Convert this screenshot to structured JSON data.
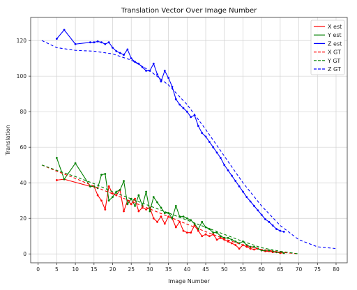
{
  "chart_data": {
    "type": "line",
    "title": "Translation Vector Over Image Number",
    "xlabel": "Image Number",
    "ylabel": "Translation",
    "xlim": [
      -2,
      83
    ],
    "ylim": [
      -5,
      133
    ],
    "xticks": [
      0,
      5,
      10,
      15,
      20,
      25,
      30,
      35,
      40,
      45,
      50,
      55,
      60,
      65,
      70,
      75,
      80
    ],
    "yticks": [
      0,
      20,
      40,
      60,
      80,
      100,
      120
    ],
    "grid": true,
    "legend_position": "top-right",
    "series": [
      {
        "name": "X est",
        "color": "#ff0000",
        "style": "solid",
        "markers": true,
        "x": [
          5,
          7,
          14,
          15,
          16,
          17,
          18,
          19,
          20,
          21,
          22,
          23,
          24,
          25,
          26,
          27,
          28,
          29,
          30,
          31,
          32,
          33,
          34,
          35,
          36,
          37,
          38,
          39,
          40,
          41,
          42,
          43,
          44,
          45,
          46,
          47,
          48,
          49,
          50,
          51,
          52,
          53,
          54,
          55,
          56,
          57,
          58,
          59,
          60,
          61,
          62,
          63,
          64,
          65,
          66
        ],
        "y": [
          41.5,
          42,
          38,
          38,
          33,
          30,
          25,
          38,
          34,
          33,
          36,
          24,
          30,
          28,
          31,
          24,
          26,
          25,
          26,
          20,
          18,
          21,
          17,
          21,
          20,
          15,
          18,
          13,
          12,
          12,
          16,
          13,
          10,
          11,
          10,
          11,
          8,
          9,
          8,
          7,
          6,
          5,
          3,
          5,
          4,
          3,
          2.5,
          3,
          2,
          1.5,
          1.5,
          1,
          1,
          0.5,
          0.5
        ]
      },
      {
        "name": "Y est",
        "color": "#008000",
        "style": "solid",
        "markers": true,
        "x": [
          5,
          7,
          10,
          14,
          15,
          16,
          17,
          18,
          19,
          20,
          21,
          22,
          23,
          24,
          25,
          26,
          27,
          28,
          29,
          30,
          31,
          32,
          33,
          34,
          35,
          36,
          37,
          38,
          39,
          40,
          41,
          42,
          43,
          44,
          45,
          46,
          47,
          48,
          49,
          50,
          51,
          52,
          53,
          54,
          55,
          56,
          57,
          58,
          59,
          60,
          61,
          62,
          63,
          64,
          65,
          66
        ],
        "y": [
          54,
          42,
          51,
          38,
          38,
          37,
          44.5,
          45,
          30,
          32,
          35,
          36,
          41,
          28,
          31,
          27,
          33,
          27,
          35,
          24,
          32,
          29,
          26,
          23,
          23,
          20,
          27,
          21,
          21,
          20,
          19,
          17,
          14,
          18,
          15,
          14,
          12,
          12,
          10,
          9,
          9,
          8,
          7,
          6,
          7,
          5,
          4,
          4,
          3,
          2,
          2,
          2,
          1.5,
          1,
          1,
          0.5
        ]
      },
      {
        "name": "Z est",
        "color": "#0000ff",
        "style": "solid",
        "markers": true,
        "x": [
          5,
          7,
          10,
          14,
          15,
          16,
          17,
          18,
          19,
          20,
          21,
          22,
          23,
          24,
          25,
          26,
          27,
          28,
          29,
          30,
          31,
          32,
          33,
          34,
          35,
          36,
          37,
          38,
          39,
          40,
          41,
          42,
          43,
          44,
          45,
          46,
          47,
          48,
          49,
          50,
          51,
          52,
          53,
          54,
          55,
          56,
          57,
          58,
          59,
          60,
          61,
          62,
          63,
          64,
          65,
          66
        ],
        "y": [
          121,
          126,
          118,
          119,
          119,
          119.5,
          119,
          118,
          119,
          116,
          114,
          113,
          112,
          115,
          110,
          108,
          107,
          105,
          103,
          103,
          107,
          101,
          97,
          103,
          99,
          94,
          87,
          84,
          82,
          80,
          77,
          78,
          72,
          68,
          66,
          63,
          60,
          57,
          54,
          50,
          47,
          44,
          41,
          38,
          35,
          32,
          29.5,
          27,
          24.5,
          22,
          19.5,
          18,
          16,
          14,
          13,
          12.5
        ]
      },
      {
        "name": "X GT",
        "color": "#ff0000",
        "style": "dashed",
        "markers": false,
        "x": [
          1,
          5,
          10,
          15,
          20,
          25,
          30,
          35,
          40,
          45,
          50,
          55,
          60,
          65,
          70
        ],
        "y": [
          50,
          46.5,
          42.5,
          38,
          33.8,
          29.5,
          25.3,
          21,
          16.7,
          12.5,
          8.5,
          5,
          2.5,
          1,
          0
        ]
      },
      {
        "name": "Y GT",
        "color": "#008000",
        "style": "dashed",
        "markers": false,
        "x": [
          1,
          5,
          10,
          15,
          20,
          25,
          30,
          35,
          40,
          45,
          50,
          55,
          60,
          65,
          70
        ],
        "y": [
          50,
          47,
          43.5,
          39.5,
          35,
          31,
          27,
          23,
          19,
          15,
          11,
          7,
          3.5,
          1.5,
          0
        ]
      },
      {
        "name": "Z GT",
        "color": "#0000ff",
        "style": "dashed",
        "markers": false,
        "x": [
          1,
          5,
          10,
          15,
          20,
          25,
          30,
          35,
          40,
          45,
          50,
          55,
          60,
          65,
          70,
          75,
          80
        ],
        "y": [
          120,
          116,
          114.5,
          114,
          112.5,
          109,
          103,
          95,
          84,
          70,
          55,
          40,
          27,
          16,
          8,
          4,
          3
        ]
      }
    ]
  }
}
